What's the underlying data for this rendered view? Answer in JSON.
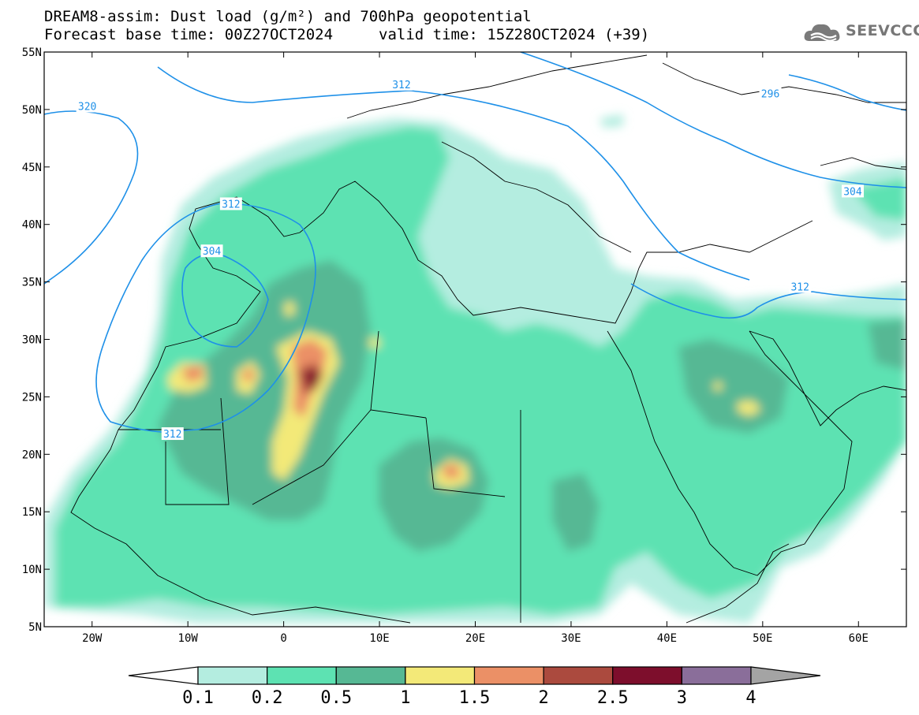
{
  "header": {
    "title_line1": "DREAM8-assim: Dust load (g/m²) and 700hPa geopotential",
    "title_line2_left": "Forecast base time: 00Z27OCT2024",
    "title_line2_right": "valid time: 15Z28OCT2024 (+39)",
    "logo_text": "SEEVCCC"
  },
  "map": {
    "lon_ticks": [
      "20W",
      "10W",
      "0",
      "10E",
      "20E",
      "30E",
      "40E",
      "50E",
      "60E"
    ],
    "lat_ticks": [
      "55N",
      "50N",
      "45N",
      "40N",
      "35N",
      "30N",
      "25N",
      "20N",
      "15N",
      "10N",
      "5N"
    ],
    "contour_labels": [
      {
        "text": "320",
        "lon": -20.5,
        "lat": 50.3
      },
      {
        "text": "312",
        "lon": 12.3,
        "lat": 52.2
      },
      {
        "text": "296",
        "lon": 50.8,
        "lat": 51.4
      },
      {
        "text": "312",
        "lon": -5.5,
        "lat": 41.8
      },
      {
        "text": "304",
        "lon": -7.5,
        "lat": 37.7
      },
      {
        "text": "304",
        "lon": 59.4,
        "lat": 42.9
      },
      {
        "text": "312",
        "lon": 53.9,
        "lat": 34.6
      },
      {
        "text": "312",
        "lon": -11.6,
        "lat": 21.8
      }
    ],
    "contour_color": "#1e90e8"
  },
  "legend": {
    "tick_labels": [
      "0.1",
      "0.2",
      "0.5",
      "1",
      "1.5",
      "2",
      "2.5",
      "3",
      "4"
    ],
    "colors": [
      "#ffffff",
      "#b4ede0",
      "#5de2b2",
      "#56b894",
      "#f3e978",
      "#eb9066",
      "#ab4a3e",
      "#7d0e2c",
      "#8a6e9a",
      "#a4a4a4"
    ]
  }
}
